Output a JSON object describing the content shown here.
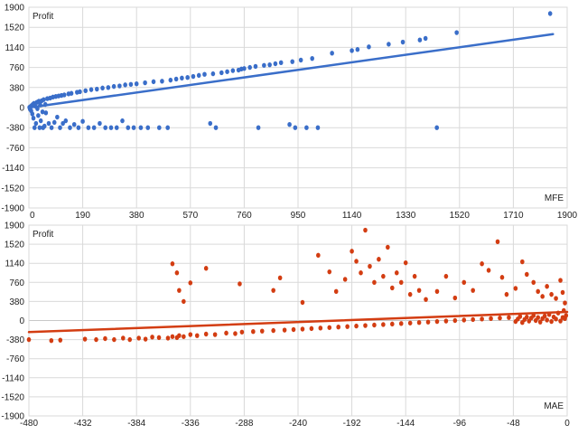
{
  "colors": {
    "background": "#ffffff",
    "grid": "#d9d9d9",
    "zero_line": "#c8c8c8",
    "text": "#222222"
  },
  "chart_data": [
    {
      "type": "scatter",
      "title": "",
      "xlabel": "MFE",
      "ylabel": "Profit",
      "grid": true,
      "x_ticks": [
        0,
        190,
        380,
        570,
        760,
        950,
        1140,
        1330,
        1520,
        1710,
        1900
      ],
      "y_ticks": [
        1900,
        1520,
        1140,
        760,
        380,
        0,
        -380,
        -760,
        -1140,
        -1520,
        -1900
      ],
      "xlim": [
        0,
        1900
      ],
      "ylim": [
        -1900,
        1900
      ],
      "color": "#3a6ec9",
      "trendline": {
        "x": [
          0,
          1850
        ],
        "y": [
          0,
          1390
        ]
      },
      "series": [
        {
          "points": [
            [
              2,
              5
            ],
            [
              4,
              -30
            ],
            [
              6,
              20
            ],
            [
              8,
              -60
            ],
            [
              10,
              40
            ],
            [
              12,
              -120
            ],
            [
              14,
              60
            ],
            [
              16,
              -200
            ],
            [
              18,
              80
            ],
            [
              20,
              -380
            ],
            [
              22,
              30
            ],
            [
              25,
              -300
            ],
            [
              28,
              100
            ],
            [
              30,
              -20
            ],
            [
              33,
              -150
            ],
            [
              35,
              120
            ],
            [
              38,
              -380
            ],
            [
              40,
              50
            ],
            [
              42,
              -250
            ],
            [
              45,
              130
            ],
            [
              48,
              -80
            ],
            [
              50,
              -380
            ],
            [
              52,
              150
            ],
            [
              55,
              -350
            ],
            [
              58,
              60
            ],
            [
              60,
              -100
            ],
            [
              65,
              170
            ],
            [
              70,
              -300
            ],
            [
              75,
              180
            ],
            [
              80,
              -380
            ],
            [
              85,
              200
            ],
            [
              90,
              -280
            ],
            [
              95,
              210
            ],
            [
              100,
              -180
            ],
            [
              105,
              220
            ],
            [
              110,
              -380
            ],
            [
              115,
              230
            ],
            [
              120,
              -300
            ],
            [
              125,
              240
            ],
            [
              130,
              -250
            ],
            [
              140,
              260
            ],
            [
              145,
              -380
            ],
            [
              150,
              270
            ],
            [
              160,
              -320
            ],
            [
              170,
              290
            ],
            [
              175,
              -380
            ],
            [
              180,
              300
            ],
            [
              190,
              -260
            ],
            [
              200,
              320
            ],
            [
              210,
              -380
            ],
            [
              220,
              340
            ],
            [
              230,
              -380
            ],
            [
              240,
              350
            ],
            [
              250,
              -300
            ],
            [
              260,
              370
            ],
            [
              270,
              -380
            ],
            [
              280,
              380
            ],
            [
              290,
              -380
            ],
            [
              300,
              400
            ],
            [
              310,
              -380
            ],
            [
              320,
              410
            ],
            [
              330,
              -250
            ],
            [
              340,
              430
            ],
            [
              350,
              -380
            ],
            [
              360,
              440
            ],
            [
              370,
              -380
            ],
            [
              380,
              450
            ],
            [
              395,
              -380
            ],
            [
              410,
              470
            ],
            [
              420,
              -380
            ],
            [
              440,
              490
            ],
            [
              460,
              -380
            ],
            [
              470,
              500
            ],
            [
              490,
              -380
            ],
            [
              500,
              520
            ],
            [
              520,
              540
            ],
            [
              540,
              560
            ],
            [
              560,
              570
            ],
            [
              580,
              590
            ],
            [
              600,
              610
            ],
            [
              620,
              630
            ],
            [
              640,
              -300
            ],
            [
              650,
              640
            ],
            [
              660,
              -380
            ],
            [
              680,
              660
            ],
            [
              700,
              680
            ],
            [
              720,
              700
            ],
            [
              740,
              710
            ],
            [
              750,
              730
            ],
            [
              760,
              740
            ],
            [
              780,
              760
            ],
            [
              800,
              780
            ],
            [
              810,
              -380
            ],
            [
              830,
              800
            ],
            [
              850,
              810
            ],
            [
              870,
              830
            ],
            [
              890,
              850
            ],
            [
              920,
              -320
            ],
            [
              930,
              870
            ],
            [
              940,
              -380
            ],
            [
              960,
              900
            ],
            [
              980,
              -380
            ],
            [
              1000,
              930
            ],
            [
              1020,
              -380
            ],
            [
              1070,
              1030
            ],
            [
              1140,
              1080
            ],
            [
              1160,
              1100
            ],
            [
              1200,
              1150
            ],
            [
              1270,
              1200
            ],
            [
              1320,
              1240
            ],
            [
              1380,
              1280
            ],
            [
              1400,
              1310
            ],
            [
              1440,
              -380
            ],
            [
              1510,
              1420
            ],
            [
              1840,
              1780
            ]
          ]
        }
      ]
    },
    {
      "type": "scatter",
      "title": "",
      "xlabel": "MAE",
      "ylabel": "Profit",
      "grid": true,
      "x_ticks": [
        -480,
        -432,
        -384,
        -336,
        -288,
        -240,
        -192,
        -144,
        -96,
        -48,
        0
      ],
      "y_ticks": [
        1900,
        1520,
        1140,
        760,
        380,
        0,
        -380,
        -760,
        -1140,
        -1520,
        -1900
      ],
      "xlim": [
        -480,
        0
      ],
      "ylim": [
        -1900,
        1900
      ],
      "color": "#d33d12",
      "trendline": {
        "x": [
          -480,
          0
        ],
        "y": [
          -230,
          170
        ]
      },
      "series": [
        {
          "points": [
            [
              -480,
              -380
            ],
            [
              -460,
              -400
            ],
            [
              -452,
              -390
            ],
            [
              -430,
              -370
            ],
            [
              -420,
              -380
            ],
            [
              -412,
              -360
            ],
            [
              -404,
              -380
            ],
            [
              -396,
              -350
            ],
            [
              -390,
              -380
            ],
            [
              -382,
              -350
            ],
            [
              -376,
              -370
            ],
            [
              -370,
              -330
            ],
            [
              -364,
              -340
            ],
            [
              -356,
              -350
            ],
            [
              -352,
              -320
            ],
            [
              -348,
              -340
            ],
            [
              -346,
              -300
            ],
            [
              -342,
              -320
            ],
            [
              -336,
              -280
            ],
            [
              -330,
              -300
            ],
            [
              -322,
              -270
            ],
            [
              -314,
              -280
            ],
            [
              -304,
              -250
            ],
            [
              -296,
              -260
            ],
            [
              -290,
              -230
            ],
            [
              -280,
              -220
            ],
            [
              -272,
              -210
            ],
            [
              -262,
              -200
            ],
            [
              -252,
              -190
            ],
            [
              -244,
              -180
            ],
            [
              -236,
              -170
            ],
            [
              -228,
              -160
            ],
            [
              -220,
              -150
            ],
            [
              -212,
              -140
            ],
            [
              -204,
              -130
            ],
            [
              -196,
              -120
            ],
            [
              -188,
              -110
            ],
            [
              -180,
              -100
            ],
            [
              -172,
              -90
            ],
            [
              -164,
              -80
            ],
            [
              -156,
              -70
            ],
            [
              -148,
              -60
            ],
            [
              -140,
              -50
            ],
            [
              -132,
              -40
            ],
            [
              -124,
              -30
            ],
            [
              -116,
              -20
            ],
            [
              -108,
              -10
            ],
            [
              -100,
              0
            ],
            [
              -92,
              10
            ],
            [
              -84,
              20
            ],
            [
              -76,
              30
            ],
            [
              -68,
              40
            ],
            [
              -60,
              50
            ],
            [
              -52,
              60
            ],
            [
              -46,
              -20
            ],
            [
              -44,
              30
            ],
            [
              -42,
              80
            ],
            [
              -40,
              -40
            ],
            [
              -38,
              20
            ],
            [
              -36,
              70
            ],
            [
              -34,
              -10
            ],
            [
              -32,
              50
            ],
            [
              -30,
              100
            ],
            [
              -28,
              0
            ],
            [
              -26,
              60
            ],
            [
              -24,
              -30
            ],
            [
              -22,
              40
            ],
            [
              -20,
              90
            ],
            [
              -18,
              10
            ],
            [
              -16,
              120
            ],
            [
              -14,
              -20
            ],
            [
              -12,
              70
            ],
            [
              -10,
              30
            ],
            [
              -8,
              150
            ],
            [
              -6,
              -10
            ],
            [
              -4,
              60
            ],
            [
              -3,
              200
            ],
            [
              -2,
              40
            ],
            [
              -1,
              100
            ],
            [
              -352,
              1130
            ],
            [
              -348,
              950
            ],
            [
              -346,
              600
            ],
            [
              -342,
              380
            ],
            [
              -336,
              750
            ],
            [
              -322,
              1040
            ],
            [
              -292,
              730
            ],
            [
              -262,
              600
            ],
            [
              -256,
              850
            ],
            [
              -236,
              360
            ],
            [
              -222,
              1300
            ],
            [
              -212,
              970
            ],
            [
              -206,
              580
            ],
            [
              -198,
              820
            ],
            [
              -192,
              1380
            ],
            [
              -188,
              1180
            ],
            [
              -184,
              950
            ],
            [
              -180,
              1800
            ],
            [
              -176,
              1080
            ],
            [
              -172,
              760
            ],
            [
              -168,
              1220
            ],
            [
              -164,
              880
            ],
            [
              -160,
              1460
            ],
            [
              -156,
              650
            ],
            [
              -152,
              950
            ],
            [
              -148,
              760
            ],
            [
              -144,
              1150
            ],
            [
              -140,
              520
            ],
            [
              -136,
              880
            ],
            [
              -132,
              600
            ],
            [
              -126,
              420
            ],
            [
              -116,
              580
            ],
            [
              -108,
              880
            ],
            [
              -100,
              450
            ],
            [
              -92,
              760
            ],
            [
              -84,
              600
            ],
            [
              -76,
              1130
            ],
            [
              -70,
              1000
            ],
            [
              -62,
              1570
            ],
            [
              -58,
              860
            ],
            [
              -54,
              520
            ],
            [
              -46,
              640
            ],
            [
              -40,
              1170
            ],
            [
              -36,
              920
            ],
            [
              -30,
              760
            ],
            [
              -26,
              580
            ],
            [
              -22,
              480
            ],
            [
              -18,
              680
            ],
            [
              -14,
              520
            ],
            [
              -10,
              440
            ],
            [
              -6,
              800
            ],
            [
              -4,
              560
            ],
            [
              -2,
              350
            ]
          ]
        }
      ]
    }
  ]
}
